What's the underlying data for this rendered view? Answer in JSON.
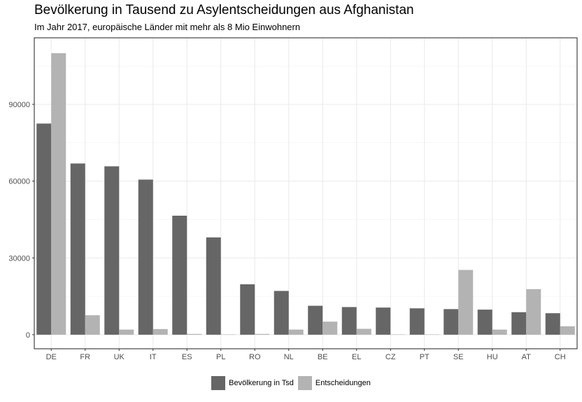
{
  "title": "Bevölkerung in Tausend zu Asylentscheidungen aus Afghanistan",
  "subtitle": "Im Jahr 2017, europäische Länder mit mehr als 8 Mio Einwohnern",
  "chart_data": {
    "type": "bar",
    "categories": [
      "DE",
      "FR",
      "UK",
      "IT",
      "ES",
      "PL",
      "RO",
      "NL",
      "BE",
      "EL",
      "CZ",
      "PT",
      "SE",
      "HU",
      "AT",
      "CH"
    ],
    "series": [
      {
        "name": "Bevölkerung in Tsd",
        "color": "#666666",
        "values": [
          82500,
          66900,
          65800,
          60600,
          46500,
          38000,
          19700,
          17100,
          11300,
          10800,
          10600,
          10300,
          10000,
          9800,
          8800,
          8400
        ]
      },
      {
        "name": "Entscheidungen",
        "color": "#b3b3b3",
        "values": [
          110000,
          7600,
          2000,
          2200,
          300,
          100,
          300,
          2000,
          5100,
          2300,
          100,
          100,
          25300,
          2000,
          17800,
          3300
        ]
      }
    ],
    "y_ticks": [
      "0",
      "30000",
      "60000",
      "90000"
    ],
    "ylim": [
      -5500,
      116000
    ],
    "grid": true,
    "legend_position": "bottom"
  }
}
